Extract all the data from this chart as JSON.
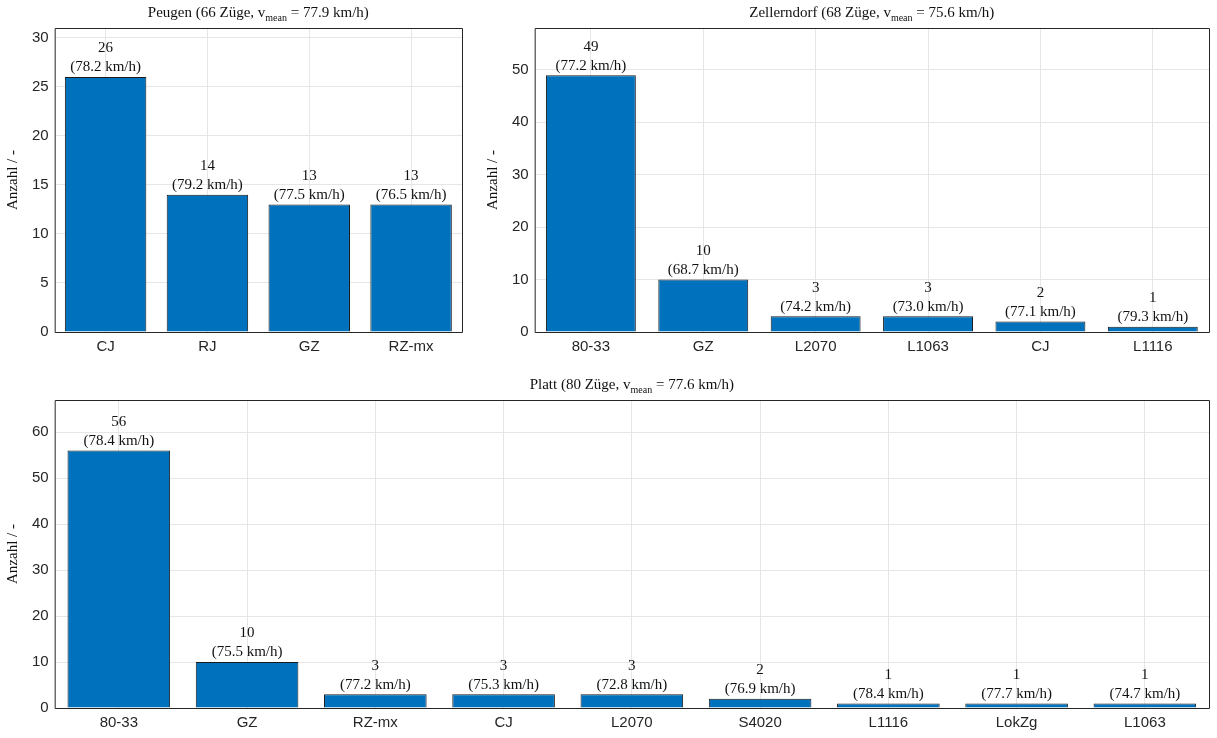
{
  "chart_data": [
    {
      "type": "bar",
      "title": "Peugen (66 Züge, v$_{mean}$ = 77.9 km/h)",
      "ylabel": "Anzahl / -",
      "categories": [
        "CJ",
        "RJ",
        "GZ",
        "RZ-mx"
      ],
      "values": [
        26,
        14,
        13,
        13
      ],
      "color": "#0072bd",
      "value_labels": [
        "26\n(78.2 km/h)",
        "14\n(79.2 km/h)",
        "13\n(77.5 km/h)",
        "13\n(76.5 km/h)"
      ],
      "ylim": [
        0,
        31
      ],
      "yticks": [
        0,
        5,
        10,
        15,
        20,
        25,
        30
      ],
      "grid": true
    },
    {
      "type": "bar",
      "title": "Zellerndorf (68 Züge, v$_{mean}$ = 75.6 km/h)",
      "ylabel": "Anzahl / -",
      "categories": [
        "80-33",
        "GZ",
        "L2070",
        "L1063",
        "CJ",
        "L1116"
      ],
      "values": [
        49,
        10,
        3,
        3,
        2,
        1
      ],
      "color": "#0072bd",
      "value_labels": [
        "49\n(77.2 km/h)",
        "10\n(68.7 km/h)",
        "3\n(74.2 km/h)",
        "3\n(73.0 km/h)",
        "2\n(77.1 km/h)",
        "1\n(79.3 km/h)"
      ],
      "ylim": [
        0,
        58
      ],
      "yticks": [
        0,
        10,
        20,
        30,
        40,
        50
      ],
      "grid": true
    },
    {
      "type": "bar",
      "title": "Platt (80 Züge, v$_{mean}$ = 77.6 km/h)",
      "ylabel": "Anzahl / -",
      "categories": [
        "80-33",
        "GZ",
        "RZ-mx",
        "CJ",
        "L2070",
        "S4020",
        "L1116",
        "LokZg",
        "L1063"
      ],
      "values": [
        56,
        10,
        3,
        3,
        3,
        2,
        1,
        1,
        1
      ],
      "color": "#0072bd",
      "value_labels": [
        "56\n(78.4 km/h)",
        "10\n(75.5 km/h)",
        "3\n(77.2 km/h)",
        "3\n(75.3 km/h)",
        "3\n(72.8 km/h)",
        "2\n(76.9 km/h)",
        "1\n(78.4 km/h)",
        "1\n(77.7 km/h)",
        "1\n(74.7 km/h)"
      ],
      "ylim": [
        0,
        67
      ],
      "yticks": [
        0,
        10,
        20,
        30,
        40,
        50,
        60
      ],
      "grid": true
    }
  ]
}
